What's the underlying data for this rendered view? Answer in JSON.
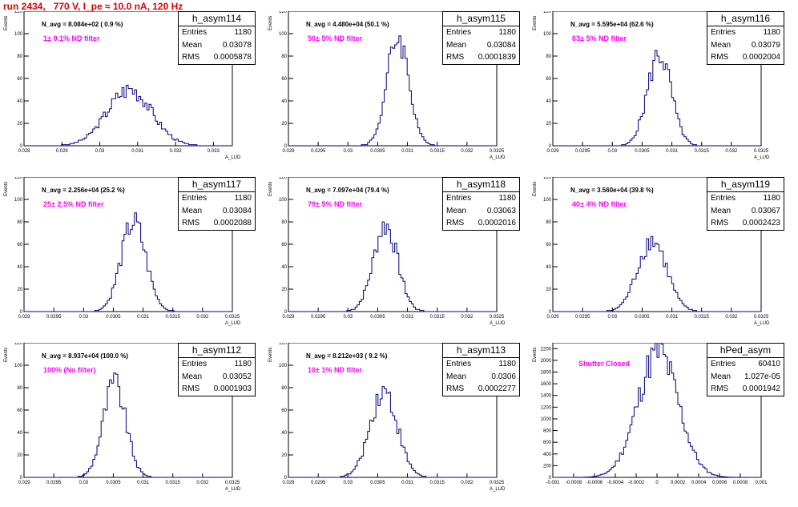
{
  "header": {
    "run_title": "run 2434,   770 V, I_pe ≈ 10.0 nA, 120 Hz"
  },
  "colors": {
    "histogram": "#000080",
    "title": "#e00000",
    "filter_text": "#ff00ff"
  },
  "chart_data": [
    {
      "type": "histogram",
      "title": "h_asym114",
      "n_avg": "N_avg = 8.084e+02 ( 0.9 %)",
      "filter": "1± 0.1% ND filter",
      "stats": {
        "entries_label": "Entries",
        "entries": "1180",
        "mean_label": "Mean",
        "mean": "0.03078",
        "rms_label": "RMS",
        "rms": "0.0005878"
      },
      "ylabel": "Events",
      "xlabel": "A_LUD",
      "xlim": [
        0.028,
        0.0335
      ],
      "ylim": [
        0,
        120
      ],
      "yticks": [
        "0",
        "20",
        "40",
        "60",
        "80",
        "100",
        "120"
      ],
      "xticks": [
        "0.028",
        "0.029",
        "0.03",
        "0.031",
        "0.032",
        "0.033"
      ],
      "xtick_vals": [
        0.028,
        0.029,
        0.03,
        0.031,
        0.032,
        0.033
      ],
      "mean_val": 0.03078,
      "rms_val": 0.0005878,
      "nbins": 100,
      "peak": 52
    },
    {
      "type": "histogram",
      "title": "h_asym115",
      "n_avg": "N_avg = 4.480e+04 (50.1 %)",
      "filter": "50± 5% ND filter",
      "stats": {
        "entries_label": "Entries",
        "entries": "1180",
        "mean_label": "Mean",
        "mean": "0.03084",
        "rms_label": "RMS",
        "rms": "0.0001839"
      },
      "ylabel": "Events",
      "xlabel": "A_LUD",
      "xlim": [
        0.029,
        0.0325
      ],
      "ylim": [
        0,
        120
      ],
      "yticks": [
        "0",
        "20",
        "40",
        "60",
        "80",
        "100",
        "120"
      ],
      "xticks": [
        "0.029",
        "0.0295",
        "0.03",
        "0.0305",
        "0.031",
        "0.0315",
        "0.032",
        "0.0325"
      ],
      "xtick_vals": [
        0.029,
        0.0295,
        0.03,
        0.0305,
        0.031,
        0.0315,
        0.032,
        0.0325
      ],
      "mean_val": 0.03084,
      "rms_val": 0.0001839,
      "nbins": 100,
      "peak": 100
    },
    {
      "type": "histogram",
      "title": "h_asym116",
      "n_avg": "N_avg = 5.595e+04 (62.6 %)",
      "filter": "63± 5% ND filter",
      "stats": {
        "entries_label": "Entries",
        "entries": "1180",
        "mean_label": "Mean",
        "mean": "0.03079",
        "rms_label": "RMS",
        "rms": "0.0002004"
      },
      "ylabel": "Events",
      "xlabel": "A_LUD",
      "xlim": [
        0.029,
        0.0325
      ],
      "ylim": [
        0,
        120
      ],
      "yticks": [
        "0",
        "20",
        "40",
        "60",
        "80",
        "100",
        "120"
      ],
      "xticks": [
        "0.029",
        "0.0295",
        "0.03",
        "0.0305",
        "0.031",
        "0.0315",
        "0.032",
        "0.0325"
      ],
      "xtick_vals": [
        0.029,
        0.0295,
        0.03,
        0.0305,
        0.031,
        0.0315,
        0.032,
        0.0325
      ],
      "mean_val": 0.03079,
      "rms_val": 0.0002004,
      "nbins": 100,
      "peak": 84
    },
    {
      "type": "histogram",
      "title": "h_asym117",
      "n_avg": "N_avg = 2.256e+04 (25.2 %)",
      "filter": "25± 2.5% ND filter",
      "stats": {
        "entries_label": "Entries",
        "entries": "1180",
        "mean_label": "Mean",
        "mean": "0.03084",
        "rms_label": "RMS",
        "rms": "0.0002088"
      },
      "ylabel": "Events",
      "xlabel": "A_LUD",
      "xlim": [
        0.029,
        0.0325
      ],
      "ylim": [
        0,
        120
      ],
      "yticks": [
        "0",
        "20",
        "40",
        "60",
        "80",
        "100",
        "120"
      ],
      "xticks": [
        "0.029",
        "0.0295",
        "0.03",
        "0.0305",
        "0.031",
        "0.0315",
        "0.032",
        "0.0325"
      ],
      "xtick_vals": [
        0.029,
        0.0295,
        0.03,
        0.0305,
        0.031,
        0.0315,
        0.032,
        0.0325
      ],
      "mean_val": 0.03084,
      "rms_val": 0.0002088,
      "nbins": 100,
      "peak": 82
    },
    {
      "type": "histogram",
      "title": "h_asym118",
      "n_avg": "N_avg = 7.097e+04 (79.4 %)",
      "filter": "79± 5% ND filter",
      "stats": {
        "entries_label": "Entries",
        "entries": "1180",
        "mean_label": "Mean",
        "mean": "0.03063",
        "rms_label": "RMS",
        "rms": "0.0002016"
      },
      "ylabel": "Events",
      "xlabel": "A_LUD",
      "xlim": [
        0.029,
        0.0325
      ],
      "ylim": [
        0,
        120
      ],
      "yticks": [
        "0",
        "20",
        "40",
        "60",
        "80",
        "100",
        "120"
      ],
      "xticks": [
        "0.029",
        "0.0295",
        "0.03",
        "0.0305",
        "0.031",
        "0.0315",
        "0.032",
        "0.0325"
      ],
      "xtick_vals": [
        0.029,
        0.0295,
        0.03,
        0.0305,
        0.031,
        0.0315,
        0.032,
        0.0325
      ],
      "mean_val": 0.03063,
      "rms_val": 0.0002016,
      "nbins": 100,
      "peak": 80
    },
    {
      "type": "histogram",
      "title": "h_asym119",
      "n_avg": "N_avg = 3.560e+04 (39.8 %)",
      "filter": "40± 4% ND filter",
      "stats": {
        "entries_label": "Entries",
        "entries": "1180",
        "mean_label": "Mean",
        "mean": "0.03067",
        "rms_label": "RMS",
        "rms": "0.0002423"
      },
      "ylabel": "Events",
      "xlabel": "A_LUD",
      "xlim": [
        0.029,
        0.0325
      ],
      "ylim": [
        0,
        120
      ],
      "yticks": [
        "0",
        "20",
        "40",
        "60",
        "80",
        "100",
        "120"
      ],
      "xticks": [
        "0.029",
        "0.0295",
        "0.03",
        "0.0305",
        "0.031",
        "0.0315",
        "0.032",
        "0.0325"
      ],
      "xtick_vals": [
        0.029,
        0.0295,
        0.03,
        0.0305,
        0.031,
        0.0315,
        0.032,
        0.0325
      ],
      "mean_val": 0.03067,
      "rms_val": 0.0002423,
      "nbins": 100,
      "peak": 66
    },
    {
      "type": "histogram",
      "title": "h_asym112",
      "n_avg": "N_avg = 8.937e+04 (100.0 %)",
      "filter": "100% (No filter)",
      "stats": {
        "entries_label": "Entries",
        "entries": "1180",
        "mean_label": "Mean",
        "mean": "0.03052",
        "rms_label": "RMS",
        "rms": "0.0001903"
      },
      "ylabel": "Events",
      "xlabel": "A_LUD",
      "xlim": [
        0.029,
        0.0325
      ],
      "ylim": [
        0,
        120
      ],
      "yticks": [
        "0",
        "20",
        "40",
        "60",
        "80",
        "100",
        "120"
      ],
      "xticks": [
        "0.029",
        "0.0295",
        "0.03",
        "0.0305",
        "0.031",
        "0.0315",
        "0.032",
        "0.0325"
      ],
      "xtick_vals": [
        0.029,
        0.0295,
        0.03,
        0.0305,
        0.031,
        0.0315,
        0.032,
        0.0325
      ],
      "mean_val": 0.03052,
      "rms_val": 0.0001903,
      "nbins": 100,
      "peak": 86
    },
    {
      "type": "histogram",
      "title": "h_asym113",
      "n_avg": "N_avg = 8.212e+03 ( 9.2 %)",
      "filter": "10± 1% ND filter",
      "stats": {
        "entries_label": "Entries",
        "entries": "1180",
        "mean_label": "Mean",
        "mean": "0.0306",
        "rms_label": "RMS",
        "rms": "0.0002277"
      },
      "ylabel": "Events",
      "xlabel": "A_LUD",
      "xlim": [
        0.029,
        0.0325
      ],
      "ylim": [
        0,
        120
      ],
      "yticks": [
        "0",
        "20",
        "40",
        "60",
        "80",
        "100",
        "120"
      ],
      "xticks": [
        "0.029",
        "0.0295",
        "0.03",
        "0.0305",
        "0.031",
        "0.0315",
        "0.032",
        "0.0325"
      ],
      "xtick_vals": [
        0.029,
        0.0295,
        0.03,
        0.0305,
        0.031,
        0.0315,
        0.032,
        0.0325
      ],
      "mean_val": 0.0306,
      "rms_val": 0.0002277,
      "nbins": 100,
      "peak": 80
    },
    {
      "type": "histogram",
      "title": "hPed_asym",
      "n_avg": "",
      "filter": "Shutter Closed",
      "stats": {
        "entries_label": "Entries",
        "entries": "60410",
        "mean_label": "Mean",
        "mean": "1.027e-05",
        "rms_label": "RMS",
        "rms": "0.0001942"
      },
      "ylabel": "Events",
      "xlabel": "",
      "xlim": [
        -0.001,
        0.001
      ],
      "ylim": [
        0,
        2300
      ],
      "yticks": [
        "0",
        "200",
        "400",
        "600",
        "800",
        "1000",
        "1200",
        "1400",
        "1600",
        "1800",
        "2000",
        "2200"
      ],
      "ytick_vals": [
        0,
        200,
        400,
        600,
        800,
        1000,
        1200,
        1400,
        1600,
        1800,
        2000,
        2200
      ],
      "xticks": [
        "-0.001",
        "-0.0008",
        "-0.0006",
        "-0.0004",
        "-0.0002",
        "0",
        "0.0002",
        "0.0004",
        "0.0006",
        "0.0008",
        "0.001"
      ],
      "xtick_vals": [
        -0.001,
        -0.0008,
        -0.0006,
        -0.0004,
        -0.0002,
        0,
        0.0002,
        0.0004,
        0.0006,
        0.0008,
        0.001
      ],
      "mean_val": 1.027e-05,
      "rms_val": 0.0001942,
      "nbins": 100,
      "peak": 2200
    }
  ]
}
